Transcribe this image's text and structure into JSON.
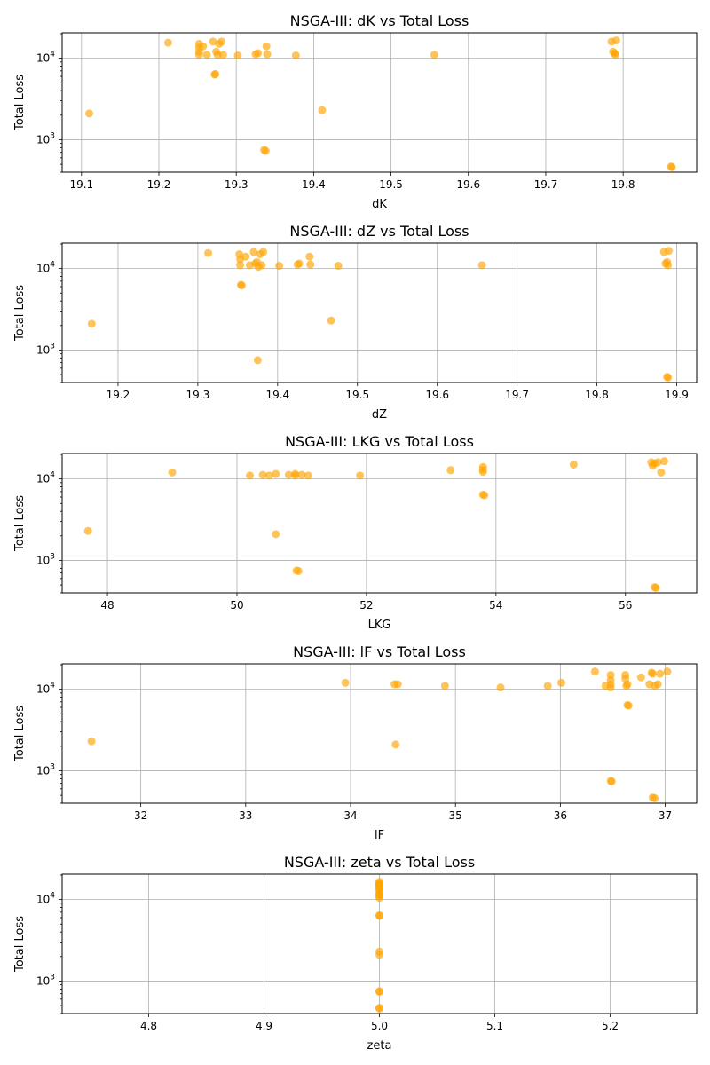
{
  "figure": {
    "marker_color": "#ffa500"
  },
  "chart_data": [
    {
      "type": "scatter",
      "title": "NSGA-III: dK vs Total Loss",
      "xlabel": "dK",
      "ylabel": "Total Loss",
      "xlim": [
        19.075,
        19.895
      ],
      "ylim": [
        400,
        20500
      ],
      "yscale": "log",
      "grid": true,
      "xticks": [
        19.1,
        19.2,
        19.3,
        19.4,
        19.5,
        19.6,
        19.7,
        19.8
      ],
      "xtick_labels": [
        "19.1",
        "19.2",
        "19.3",
        "19.4",
        "19.5",
        "19.6",
        "19.7",
        "19.8"
      ],
      "yticks": [
        1000,
        10000
      ],
      "ytick_labels": [
        {
          "base": "10",
          "exp": "3"
        },
        {
          "base": "10",
          "exp": "4"
        }
      ],
      "points": [
        [
          19.11,
          2100
        ],
        [
          19.212,
          15500
        ],
        [
          19.252,
          15000
        ],
        [
          19.252,
          13500
        ],
        [
          19.252,
          12000
        ],
        [
          19.252,
          11000
        ],
        [
          19.257,
          14000
        ],
        [
          19.262,
          11000
        ],
        [
          19.27,
          16000
        ],
        [
          19.272,
          6300
        ],
        [
          19.273,
          6400
        ],
        [
          19.274,
          12000
        ],
        [
          19.276,
          11000
        ],
        [
          19.278,
          15000
        ],
        [
          19.281,
          16000
        ],
        [
          19.283,
          11000
        ],
        [
          19.302,
          10800
        ],
        [
          19.325,
          11200
        ],
        [
          19.328,
          11500
        ],
        [
          19.336,
          750
        ],
        [
          19.338,
          730
        ],
        [
          19.339,
          14000
        ],
        [
          19.34,
          11200
        ],
        [
          19.377,
          10800
        ],
        [
          19.411,
          2300
        ],
        [
          19.556,
          11000
        ],
        [
          19.785,
          16000
        ],
        [
          19.787,
          12000
        ],
        [
          19.789,
          11500
        ],
        [
          19.79,
          11000
        ],
        [
          19.791,
          16500
        ],
        [
          19.862,
          470
        ],
        [
          19.863,
          460
        ]
      ]
    },
    {
      "type": "scatter",
      "title": "NSGA-III: dZ vs Total Loss",
      "xlabel": "dZ",
      "ylabel": "Total Loss",
      "xlim": [
        19.13,
        19.925
      ],
      "ylim": [
        400,
        20500
      ],
      "yscale": "log",
      "grid": true,
      "xticks": [
        19.2,
        19.3,
        19.4,
        19.5,
        19.6,
        19.7,
        19.8,
        19.9
      ],
      "xtick_labels": [
        "19.2",
        "19.3",
        "19.4",
        "19.5",
        "19.6",
        "19.7",
        "19.8",
        "19.9"
      ],
      "yticks": [
        1000,
        10000
      ],
      "ytick_labels": [
        {
          "base": "10",
          "exp": "3"
        },
        {
          "base": "10",
          "exp": "4"
        }
      ],
      "points": [
        [
          19.167,
          2100
        ],
        [
          19.313,
          15500
        ],
        [
          19.352,
          15000
        ],
        [
          19.353,
          13000
        ],
        [
          19.353,
          11000
        ],
        [
          19.354,
          6300
        ],
        [
          19.355,
          6200
        ],
        [
          19.36,
          14000
        ],
        [
          19.365,
          11000
        ],
        [
          19.37,
          16000
        ],
        [
          19.372,
          11500
        ],
        [
          19.374,
          12000
        ],
        [
          19.375,
          750
        ],
        [
          19.376,
          10500
        ],
        [
          19.378,
          15000
        ],
        [
          19.38,
          11000
        ],
        [
          19.382,
          16000
        ],
        [
          19.402,
          10800
        ],
        [
          19.425,
          11200
        ],
        [
          19.427,
          11500
        ],
        [
          19.44,
          14000
        ],
        [
          19.441,
          11200
        ],
        [
          19.467,
          2300
        ],
        [
          19.476,
          10800
        ],
        [
          19.656,
          11000
        ],
        [
          19.884,
          16000
        ],
        [
          19.886,
          11500
        ],
        [
          19.888,
          12000
        ],
        [
          19.889,
          11000
        ],
        [
          19.89,
          16500
        ],
        [
          19.888,
          470
        ],
        [
          19.889,
          460
        ]
      ]
    },
    {
      "type": "scatter",
      "title": "NSGA-III: LKG vs Total Loss",
      "xlabel": "LKG",
      "ylabel": "Total Loss",
      "xlim": [
        47.3,
        57.1
      ],
      "ylim": [
        400,
        20500
      ],
      "yscale": "log",
      "grid": true,
      "xticks": [
        48,
        50,
        52,
        54,
        56
      ],
      "xtick_labels": [
        "48",
        "50",
        "52",
        "54",
        "56"
      ],
      "yticks": [
        1000,
        10000
      ],
      "ytick_labels": [
        {
          "base": "10",
          "exp": "3"
        },
        {
          "base": "10",
          "exp": "4"
        }
      ],
      "points": [
        [
          47.7,
          2300
        ],
        [
          49.0,
          12000
        ],
        [
          50.2,
          11000
        ],
        [
          50.4,
          11200
        ],
        [
          50.5,
          11000
        ],
        [
          50.6,
          11500
        ],
        [
          50.6,
          2100
        ],
        [
          50.8,
          11200
        ],
        [
          50.9,
          11000
        ],
        [
          50.9,
          11500
        ],
        [
          50.92,
          750
        ],
        [
          50.95,
          740
        ],
        [
          51.0,
          11200
        ],
        [
          51.1,
          11000
        ],
        [
          51.9,
          11000
        ],
        [
          53.3,
          12800
        ],
        [
          53.8,
          14000
        ],
        [
          53.8,
          13000
        ],
        [
          53.8,
          12200
        ],
        [
          53.8,
          6400
        ],
        [
          53.82,
          6300
        ],
        [
          55.2,
          15000
        ],
        [
          56.4,
          16000
        ],
        [
          56.42,
          14500
        ],
        [
          56.45,
          15500
        ],
        [
          56.5,
          16000
        ],
        [
          56.55,
          12000
        ],
        [
          56.6,
          16500
        ],
        [
          56.45,
          470
        ],
        [
          56.47,
          460
        ]
      ]
    },
    {
      "type": "scatter",
      "title": "NSGA-III: lF vs Total Loss",
      "xlabel": "lF",
      "ylabel": "Total Loss",
      "xlim": [
        31.25,
        37.3
      ],
      "ylim": [
        400,
        20500
      ],
      "yscale": "log",
      "grid": true,
      "xticks": [
        32,
        33,
        34,
        35,
        36,
        37
      ],
      "xtick_labels": [
        "32",
        "33",
        "34",
        "35",
        "36",
        "37"
      ],
      "yticks": [
        1000,
        10000
      ],
      "ytick_labels": [
        {
          "base": "10",
          "exp": "3"
        },
        {
          "base": "10",
          "exp": "4"
        }
      ],
      "points": [
        [
          31.53,
          2300
        ],
        [
          33.95,
          12000
        ],
        [
          34.42,
          11500
        ],
        [
          34.45,
          11500
        ],
        [
          34.43,
          2100
        ],
        [
          34.9,
          11000
        ],
        [
          35.43,
          10500
        ],
        [
          35.88,
          11000
        ],
        [
          36.01,
          12000
        ],
        [
          36.33,
          16500
        ],
        [
          36.43,
          11000
        ],
        [
          36.48,
          15000
        ],
        [
          36.48,
          13000
        ],
        [
          36.48,
          11500
        ],
        [
          36.48,
          10500
        ],
        [
          36.48,
          750
        ],
        [
          36.49,
          740
        ],
        [
          36.62,
          15000
        ],
        [
          36.62,
          13500
        ],
        [
          36.63,
          11000
        ],
        [
          36.64,
          11500
        ],
        [
          36.64,
          6400
        ],
        [
          36.65,
          6300
        ],
        [
          36.77,
          14000
        ],
        [
          36.85,
          11500
        ],
        [
          36.87,
          16000
        ],
        [
          36.88,
          15500
        ],
        [
          36.9,
          11000
        ],
        [
          36.93,
          11500
        ],
        [
          36.95,
          15500
        ],
        [
          37.02,
          16500
        ],
        [
          36.88,
          470
        ],
        [
          36.9,
          460
        ]
      ]
    },
    {
      "type": "scatter",
      "title": "NSGA-III: zeta vs Total Loss",
      "xlabel": "zeta",
      "ylabel": "Total Loss",
      "xlim": [
        4.725,
        5.275
      ],
      "ylim": [
        400,
        20500
      ],
      "yscale": "log",
      "grid": true,
      "xticks": [
        4.8,
        4.9,
        5.0,
        5.1,
        5.2
      ],
      "xtick_labels": [
        "4.8",
        "4.9",
        "5.0",
        "5.1",
        "5.2"
      ],
      "yticks": [
        1000,
        10000
      ],
      "ytick_labels": [
        {
          "base": "10",
          "exp": "3"
        },
        {
          "base": "10",
          "exp": "4"
        }
      ],
      "points": [
        [
          5.0,
          16500
        ],
        [
          5.0,
          16000
        ],
        [
          5.0,
          15500
        ],
        [
          5.0,
          15000
        ],
        [
          5.0,
          14500
        ],
        [
          5.0,
          14000
        ],
        [
          5.0,
          13500
        ],
        [
          5.0,
          13000
        ],
        [
          5.0,
          12000
        ],
        [
          5.0,
          11500
        ],
        [
          5.0,
          11000
        ],
        [
          5.0,
          10500
        ],
        [
          5.0,
          6400
        ],
        [
          5.0,
          6300
        ],
        [
          5.0,
          2300
        ],
        [
          5.0,
          2100
        ],
        [
          5.0,
          750
        ],
        [
          5.0,
          740
        ],
        [
          5.0,
          470
        ],
        [
          5.0,
          460
        ]
      ]
    }
  ]
}
